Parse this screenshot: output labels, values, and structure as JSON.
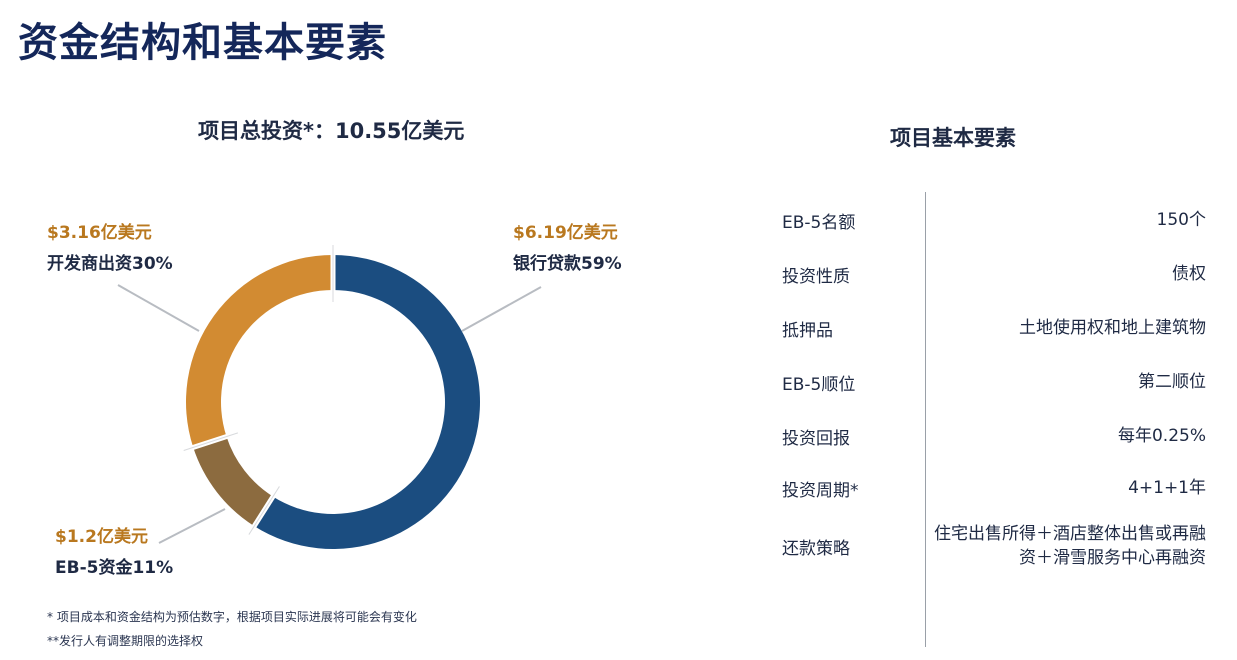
{
  "header": {
    "title": "资金结构和基本要素"
  },
  "chart_data": {
    "type": "pie",
    "title": "项目总投资*：10.55亿美元",
    "slices": [
      {
        "label": "银行贷款59%",
        "amount": "$6.19亿美元",
        "value": 59,
        "color": "#1b4d80"
      },
      {
        "label": "EB-5资金11%",
        "amount": "$1.2亿美元",
        "value": 11,
        "color": "#8c6b3f"
      },
      {
        "label": "开发商出资30%",
        "amount": "$3.16亿美元",
        "value": 30,
        "color": "#d28b32"
      }
    ]
  },
  "notes": [
    "* 项目成本和资金结构为预估数字，根据项目实际进展将可能会有变化",
    "**发行人有调整期限的选择权"
  ],
  "panel": {
    "title": "项目基本要素",
    "rows": [
      {
        "key": "EB-5名额",
        "value": "150个"
      },
      {
        "key": "投资性质",
        "value": "债权"
      },
      {
        "key": "抵押品",
        "value": "土地使用权和地上建筑物"
      },
      {
        "key": "EB-5顺位",
        "value": "第二顺位"
      },
      {
        "key": "投资回报",
        "value": "每年0.25%"
      },
      {
        "key": "投资周期*",
        "value": "4+1+1年"
      },
      {
        "key": "还款策略",
        "value": "住宅出售所得＋酒店整体出售或再融资＋滑雪服务中心再融资"
      }
    ]
  }
}
